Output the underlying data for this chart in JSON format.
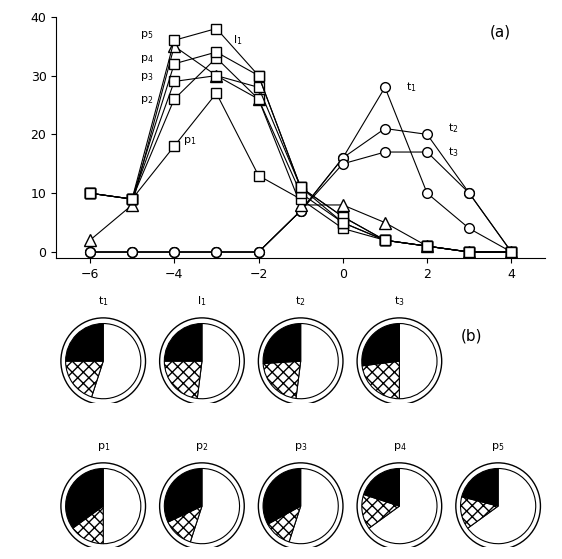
{
  "x_vals": [
    -6,
    -5,
    -4,
    -3,
    -2,
    -1,
    0,
    1,
    2,
    3,
    4
  ],
  "tuffs": {
    "t1": [
      0,
      0,
      0,
      0,
      0,
      7,
      16,
      28,
      10,
      4,
      0
    ],
    "t2": [
      0,
      0,
      0,
      0,
      0,
      7,
      16,
      21,
      20,
      10,
      0
    ],
    "t3": [
      0,
      0,
      0,
      0,
      0,
      7,
      15,
      17,
      17,
      10,
      0
    ]
  },
  "lapillistone": {
    "l1": [
      2,
      8,
      35,
      30,
      26,
      8,
      8,
      5,
      1,
      0,
      0
    ]
  },
  "pumice": {
    "p1": [
      10,
      9,
      18,
      27,
      13,
      9,
      4,
      2,
      1,
      0,
      0
    ],
    "p2": [
      10,
      9,
      26,
      33,
      26,
      10,
      5,
      2,
      1,
      0,
      0
    ],
    "p3": [
      10,
      9,
      29,
      30,
      28,
      11,
      6,
      2,
      1,
      0,
      0
    ],
    "p4": [
      10,
      9,
      32,
      34,
      30,
      11,
      6,
      2,
      1,
      0,
      0
    ],
    "p5": [
      10,
      9,
      36,
      38,
      30,
      11,
      5,
      2,
      1,
      0,
      0
    ]
  },
  "pie_top": {
    "t1": {
      "juvenile": 55,
      "crystals": 20,
      "lithics": 25
    },
    "l1": {
      "juvenile": 52,
      "crystals": 23,
      "lithics": 25
    },
    "t2": {
      "juvenile": 52,
      "crystals": 22,
      "lithics": 26
    },
    "t3": {
      "juvenile": 50,
      "crystals": 23,
      "lithics": 27
    }
  },
  "pie_bottom": {
    "p1": {
      "juvenile": 50,
      "crystals": 15,
      "lithics": 35
    },
    "p2": {
      "juvenile": 55,
      "crystals": 13,
      "lithics": 32
    },
    "p3": {
      "juvenile": 55,
      "crystals": 12,
      "lithics": 33
    },
    "p4": {
      "juvenile": 65,
      "crystals": 15,
      "lithics": 20
    },
    "p5": {
      "juvenile": 65,
      "crystals": 14,
      "lithics": 21
    }
  }
}
